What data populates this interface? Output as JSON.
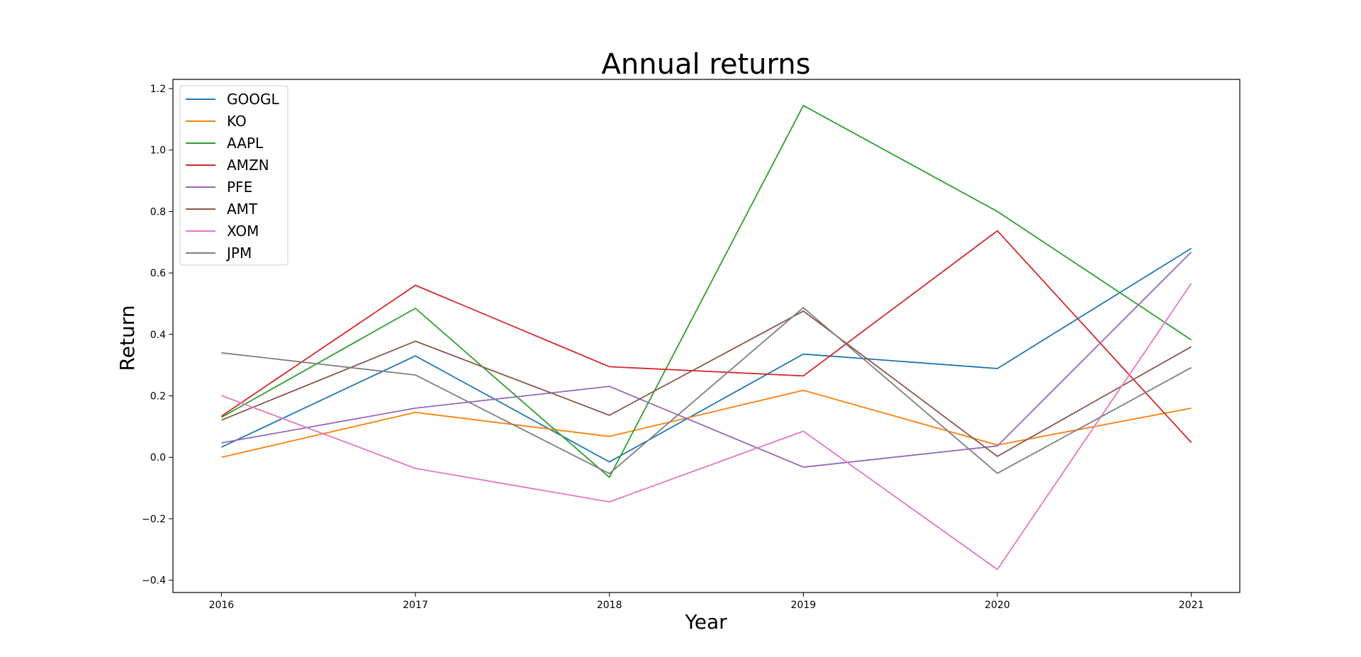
{
  "chart_data": {
    "type": "line",
    "title": "Annual returns",
    "xlabel": "Year",
    "ylabel": "Return",
    "x": [
      2016,
      2017,
      2018,
      2019,
      2020,
      2021
    ],
    "x_tick_labels": [
      "2016",
      "2017",
      "2018",
      "2019",
      "2020",
      "2021"
    ],
    "xlim": [
      2015.75,
      2021.25
    ],
    "ylim": [
      -0.44,
      1.23
    ],
    "y_ticks": [
      -0.4,
      -0.2,
      0.0,
      0.2,
      0.4,
      0.6,
      0.8,
      1.0,
      1.2
    ],
    "y_tick_labels": [
      "−0.4",
      "−0.2",
      "0.0",
      "0.2",
      "0.4",
      "0.6",
      "0.8",
      "1.0",
      "1.2"
    ],
    "grid": false,
    "legend_position": "top-left",
    "series": [
      {
        "name": "GOOGL",
        "color": "#1f77b4",
        "values": [
          0.033,
          0.33,
          -0.015,
          0.336,
          0.289,
          0.68
        ]
      },
      {
        "name": "KO",
        "color": "#ff7f0e",
        "values": [
          0.0,
          0.146,
          0.068,
          0.218,
          0.04,
          0.16
        ]
      },
      {
        "name": "AAPL",
        "color": "#2ca02c",
        "values": [
          0.13,
          0.485,
          -0.065,
          1.145,
          0.8,
          0.382
        ]
      },
      {
        "name": "AMZN",
        "color": "#d62728",
        "values": [
          0.134,
          0.56,
          0.295,
          0.265,
          0.737,
          0.048
        ]
      },
      {
        "name": "PFE",
        "color": "#9467bd",
        "values": [
          0.047,
          0.16,
          0.231,
          -0.032,
          0.037,
          0.668
        ]
      },
      {
        "name": "AMT",
        "color": "#8c564b",
        "values": [
          0.121,
          0.378,
          0.137,
          0.476,
          0.003,
          0.36
        ]
      },
      {
        "name": "XOM",
        "color": "#e377c2",
        "values": [
          0.201,
          -0.036,
          -0.145,
          0.085,
          -0.365,
          0.566
        ]
      },
      {
        "name": "JPM",
        "color": "#7f7f7f",
        "values": [
          0.34,
          0.268,
          -0.053,
          0.487,
          -0.052,
          0.292
        ]
      }
    ]
  }
}
